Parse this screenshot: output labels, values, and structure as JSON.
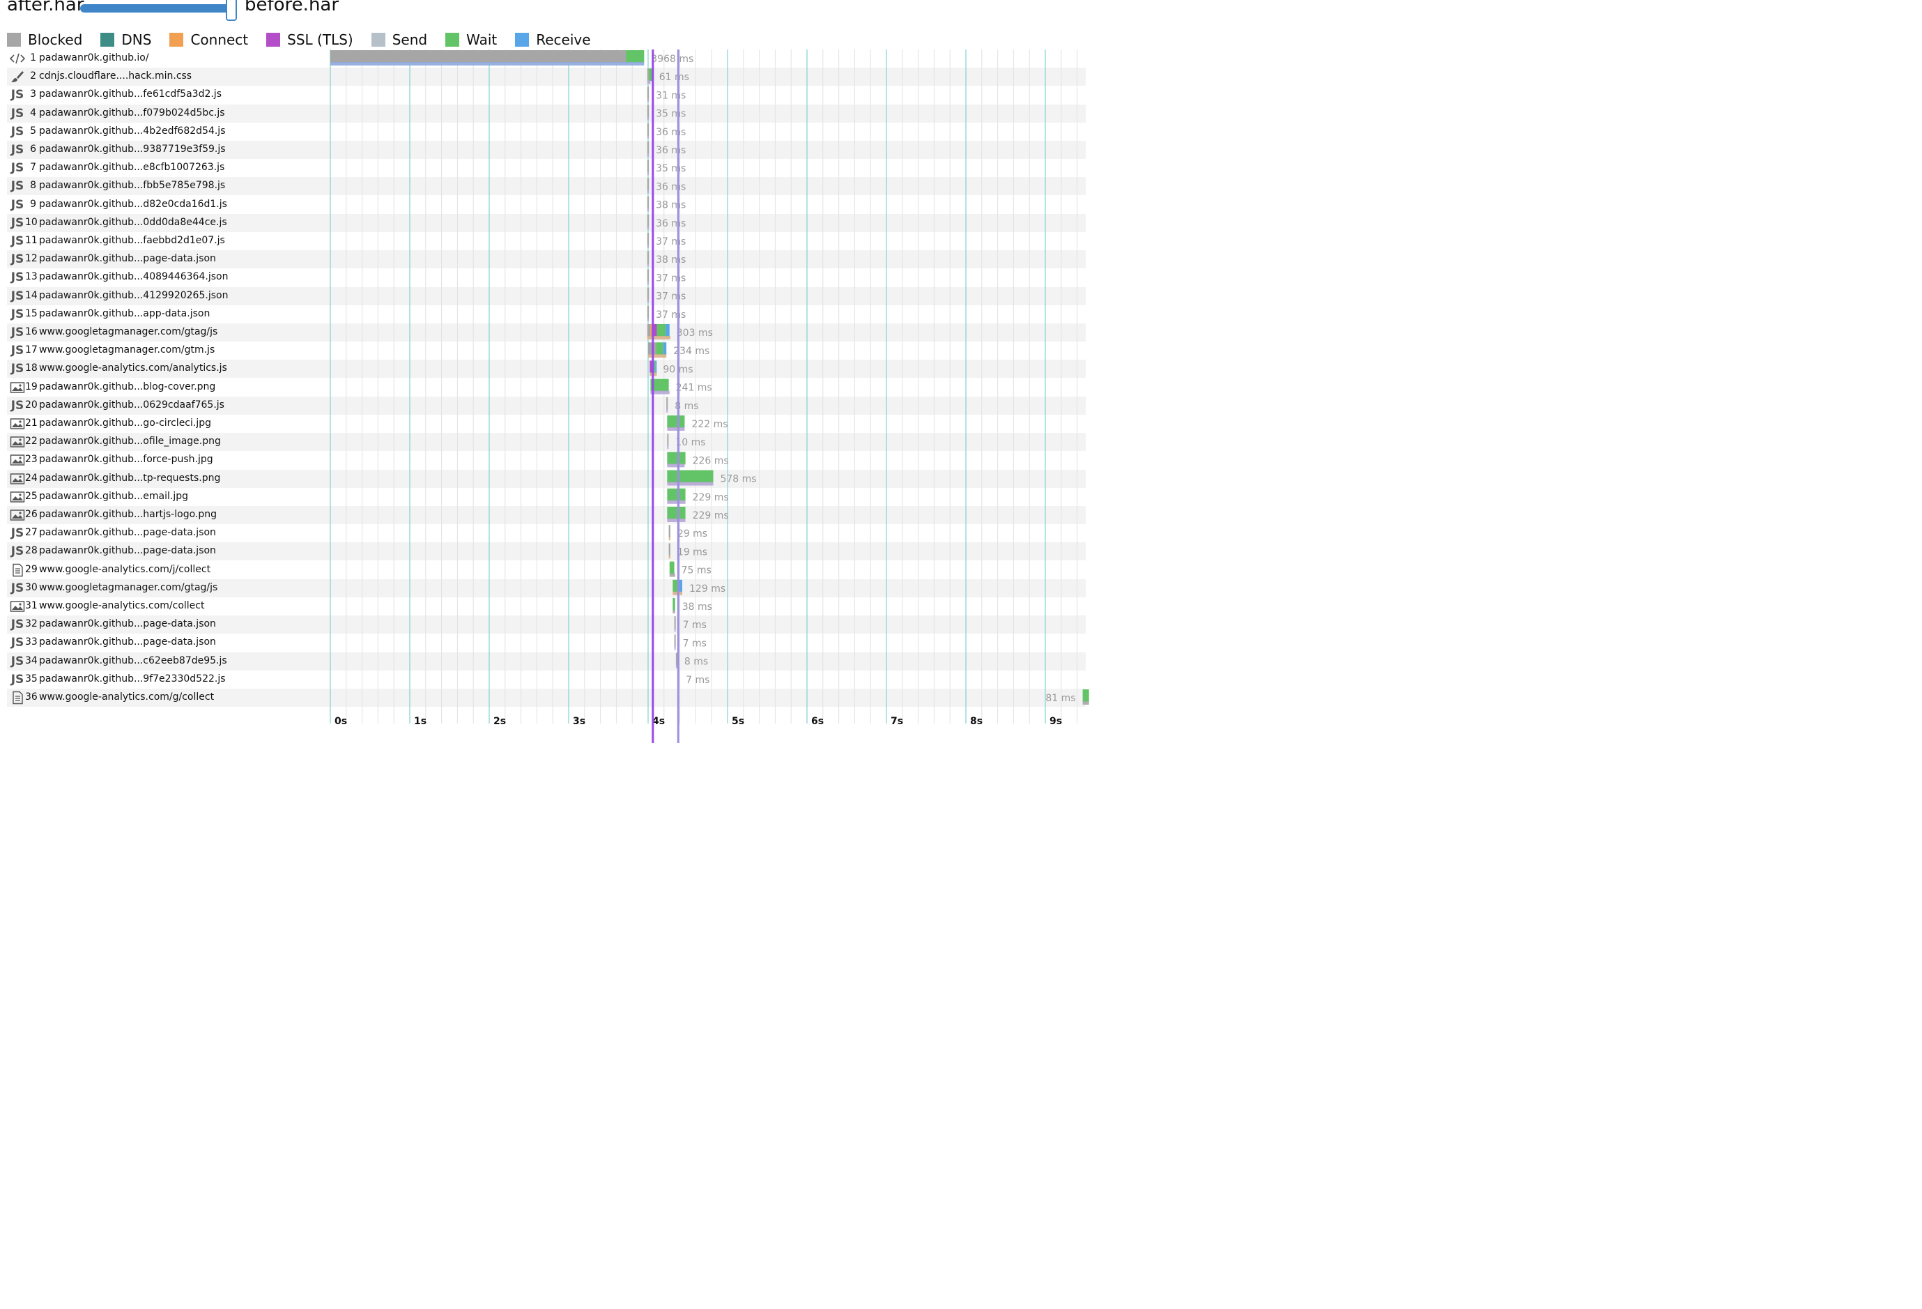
{
  "header": {
    "after_label": "after.har",
    "before_label": "before.har",
    "comparison_slider_percent": 96
  },
  "legend": [
    {
      "key": "blocked",
      "label": "Blocked",
      "color": "#a6a6a6"
    },
    {
      "key": "dns",
      "label": "DNS",
      "color": "#3d8d86"
    },
    {
      "key": "connect",
      "label": "Connect",
      "color": "#f0a050"
    },
    {
      "key": "ssl",
      "label": "SSL (TLS)",
      "color": "#b44ec8"
    },
    {
      "key": "send",
      "label": "Send",
      "color": "#b6c0c8"
    },
    {
      "key": "wait",
      "label": "Wait",
      "color": "#62c466"
    },
    {
      "key": "receive",
      "label": "Receive",
      "color": "#58a6e8"
    }
  ],
  "timeline": {
    "axis_labels": [
      "0s",
      "1s",
      "2s",
      "3s",
      "4s",
      "5s",
      "6s",
      "7s",
      "8s",
      "9s"
    ],
    "max_seconds": 9.55,
    "dom_content_loaded_s": 4.06,
    "onload_s": 4.38
  },
  "requests": [
    {
      "num": "1",
      "url": "padawanr0k.github.io/",
      "icon": "html",
      "start": 0.0,
      "phases": {
        "blocked": 3.72,
        "wait": 0.23
      },
      "duration": "3968 ms",
      "compare_color": "#8ea8de",
      "compare_dur": 3.95
    },
    {
      "num": "2",
      "url": "cdnjs.cloudflare....hack.min.css",
      "icon": "css",
      "start": 3.99,
      "phases": {
        "blocked": 0.02,
        "wait": 0.04
      },
      "duration": "61 ms",
      "compare_color": "#b6a6d6",
      "compare_dur": 0.04
    },
    {
      "num": "3",
      "url": "padawanr0k.github...fe61cdf5a3d2.js",
      "icon": "js",
      "start": 3.99,
      "phases": {
        "blocked": 0.02
      },
      "duration": "31 ms",
      "compare_color": "#b6a6d6",
      "compare_dur": 0.02
    },
    {
      "num": "4",
      "url": "padawanr0k.github...f079b024d5bc.js",
      "icon": "js",
      "start": 3.99,
      "phases": {
        "blocked": 0.02
      },
      "duration": "35 ms",
      "compare_color": "#b6a6d6",
      "compare_dur": 0.02
    },
    {
      "num": "5",
      "url": "padawanr0k.github...4b2edf682d54.js",
      "icon": "js",
      "start": 3.99,
      "phases": {
        "blocked": 0.02
      },
      "duration": "36 ms",
      "compare_color": "#b6a6d6",
      "compare_dur": 0.02
    },
    {
      "num": "6",
      "url": "padawanr0k.github...9387719e3f59.js",
      "icon": "js",
      "start": 3.99,
      "phases": {
        "blocked": 0.02
      },
      "duration": "36 ms",
      "compare_color": "#b6a6d6",
      "compare_dur": 0.02
    },
    {
      "num": "7",
      "url": "padawanr0k.github...e8cfb1007263.js",
      "icon": "js",
      "start": 3.99,
      "phases": {
        "blocked": 0.02
      },
      "duration": "35 ms",
      "compare_color": "#b6a6d6",
      "compare_dur": 0.02
    },
    {
      "num": "8",
      "url": "padawanr0k.github...fbb5e785e798.js",
      "icon": "js",
      "start": 3.99,
      "phases": {
        "blocked": 0.02
      },
      "duration": "36 ms",
      "compare_color": "#b6a6d6",
      "compare_dur": 0.02
    },
    {
      "num": "9",
      "url": "padawanr0k.github...d82e0cda16d1.js",
      "icon": "js",
      "start": 3.99,
      "phases": {
        "blocked": 0.02
      },
      "duration": "38 ms",
      "compare_color": "#b6a6d6",
      "compare_dur": 0.02
    },
    {
      "num": "10",
      "url": "padawanr0k.github...0dd0da8e44ce.js",
      "icon": "js",
      "start": 3.99,
      "phases": {
        "blocked": 0.02
      },
      "duration": "36 ms",
      "compare_color": "#b6a6d6",
      "compare_dur": 0.02
    },
    {
      "num": "11",
      "url": "padawanr0k.github...faebbd2d1e07.js",
      "icon": "js",
      "start": 3.99,
      "phases": {
        "blocked": 0.02
      },
      "duration": "37 ms",
      "compare_color": "#b6a6d6",
      "compare_dur": 0.02
    },
    {
      "num": "12",
      "url": "padawanr0k.github...page-data.json",
      "icon": "js",
      "start": 3.99,
      "phases": {
        "blocked": 0.02
      },
      "duration": "38 ms",
      "compare_color": "#b6a6d6",
      "compare_dur": 0.02
    },
    {
      "num": "13",
      "url": "padawanr0k.github...4089446364.json",
      "icon": "js",
      "start": 3.99,
      "phases": {
        "blocked": 0.02
      },
      "duration": "37 ms",
      "compare_color": "#b6a6d6",
      "compare_dur": 0.02
    },
    {
      "num": "14",
      "url": "padawanr0k.github...4129920265.json",
      "icon": "js",
      "start": 3.99,
      "phases": {
        "blocked": 0.02
      },
      "duration": "37 ms",
      "compare_color": "#b6a6d6",
      "compare_dur": 0.02
    },
    {
      "num": "15",
      "url": "padawanr0k.github...app-data.json",
      "icon": "js",
      "start": 3.99,
      "phases": {
        "blocked": 0.02
      },
      "duration": "37 ms",
      "compare_color": "#b6a6d6",
      "compare_dur": 0.02
    },
    {
      "num": "16",
      "url": "www.googletagmanager.com/gtag/js",
      "icon": "js",
      "start": 3.99,
      "phases": {
        "blocked": 0.04,
        "ssl": 0.06,
        "connect": 0.02,
        "wait": 0.11,
        "receive": 0.05
      },
      "duration": "303 ms",
      "compare_color": "#d8b08a",
      "compare_dur": 0.29
    },
    {
      "num": "17",
      "url": "www.googletagmanager.com/gtm.js",
      "icon": "js",
      "start": 4.0,
      "phases": {
        "blocked": 0.1,
        "wait": 0.09,
        "receive": 0.04
      },
      "duration": "234 ms",
      "compare_color": "#d8b08a",
      "compare_dur": 0.23
    },
    {
      "num": "18",
      "url": "www.google-analytics.com/analytics.js",
      "icon": "js",
      "start": 4.02,
      "phases": {
        "ssl": 0.04,
        "wait": 0.03,
        "receive": 0.01
      },
      "duration": "90 ms",
      "compare_color": "#d8b08a",
      "compare_dur": 0.09
    },
    {
      "num": "19",
      "url": "padawanr0k.github...blog-cover.png",
      "icon": "img",
      "start": 4.03,
      "phases": {
        "wait": 0.23
      },
      "duration": "241 ms",
      "compare_color": "#b6a6d6",
      "compare_dur": 0.24
    },
    {
      "num": "20",
      "url": "padawanr0k.github...0629cdaaf765.js",
      "icon": "js",
      "start": 4.23,
      "phases": {
        "blocked": 0.01
      },
      "duration": "8 ms",
      "compare_color": "#b6a6d6",
      "compare_dur": 0.01
    },
    {
      "num": "21",
      "url": "padawanr0k.github...go-circleci.jpg",
      "icon": "img",
      "start": 4.24,
      "phases": {
        "wait": 0.22
      },
      "duration": "222 ms",
      "compare_color": "#b6a6d6",
      "compare_dur": 0.22
    },
    {
      "num": "22",
      "url": "padawanr0k.github...ofile_image.png",
      "icon": "img",
      "start": 4.24,
      "phases": {
        "blocked": 0.01
      },
      "duration": "10 ms",
      "compare_color": "#b6a6d6",
      "compare_dur": 0.01
    },
    {
      "num": "23",
      "url": "padawanr0k.github...force-push.jpg",
      "icon": "img",
      "start": 4.24,
      "phases": {
        "wait": 0.23
      },
      "duration": "226 ms",
      "compare_color": "#b6a6d6",
      "compare_dur": 0.22
    },
    {
      "num": "24",
      "url": "padawanr0k.github...tp-requests.png",
      "icon": "img",
      "start": 4.24,
      "phases": {
        "wait": 0.58
      },
      "duration": "578 ms",
      "compare_color": "#b6a6d6",
      "compare_dur": 0.58
    },
    {
      "num": "25",
      "url": "padawanr0k.github...email.jpg",
      "icon": "img",
      "start": 4.24,
      "phases": {
        "wait": 0.23
      },
      "duration": "229 ms",
      "compare_color": "#b6a6d6",
      "compare_dur": 0.23
    },
    {
      "num": "26",
      "url": "padawanr0k.github...hartjs-logo.png",
      "icon": "img",
      "start": 4.24,
      "phases": {
        "wait": 0.23
      },
      "duration": "229 ms",
      "compare_color": "#b6a6d6",
      "compare_dur": 0.23
    },
    {
      "num": "27",
      "url": "padawanr0k.github...page-data.json",
      "icon": "js",
      "start": 4.26,
      "phases": {
        "blocked": 0.02
      },
      "duration": "29 ms",
      "compare_color": "#d8b08a",
      "compare_dur": 0.02
    },
    {
      "num": "28",
      "url": "padawanr0k.github...page-data.json",
      "icon": "js",
      "start": 4.26,
      "phases": {
        "blocked": 0.02
      },
      "duration": "19 ms",
      "compare_color": "#d8b08a",
      "compare_dur": 0.02
    },
    {
      "num": "29",
      "url": "www.google-analytics.com/j/collect",
      "icon": "doc",
      "start": 4.27,
      "phases": {
        "wait": 0.06
      },
      "duration": "75 ms",
      "compare_color": "#a6a6a6",
      "compare_dur": 0.07
    },
    {
      "num": "30",
      "url": "www.googletagmanager.com/gtag/js",
      "icon": "js",
      "start": 4.31,
      "phases": {
        "wait": 0.08,
        "receive": 0.04
      },
      "duration": "129 ms",
      "compare_color": "#d8b08a",
      "compare_dur": 0.12
    },
    {
      "num": "31",
      "url": "www.google-analytics.com/collect",
      "icon": "img",
      "start": 4.31,
      "phases": {
        "wait": 0.03
      },
      "duration": "38 ms",
      "compare_color": "#a6a6a6",
      "compare_dur": 0.03
    },
    {
      "num": "32",
      "url": "padawanr0k.github...page-data.json",
      "icon": "js",
      "start": 4.33,
      "phases": {
        "blocked": 0.01
      },
      "duration": "7 ms",
      "compare_color": "#b6a6d6",
      "compare_dur": 0.01
    },
    {
      "num": "33",
      "url": "padawanr0k.github...page-data.json",
      "icon": "js",
      "start": 4.33,
      "phases": {
        "blocked": 0.01
      },
      "duration": "7 ms",
      "compare_color": "#b6a6d6",
      "compare_dur": 0.01
    },
    {
      "num": "34",
      "url": "padawanr0k.github...c62eeb87de95.js",
      "icon": "js",
      "start": 4.35,
      "phases": {
        "blocked": 0.01
      },
      "duration": "8 ms",
      "compare_color": "#b6a6d6",
      "compare_dur": 0.01
    },
    {
      "num": "35",
      "url": "padawanr0k.github...9f7e2330d522.js",
      "icon": "js",
      "start": 4.37,
      "phases": {
        "blocked": 0.01
      },
      "duration": "7 ms",
      "compare_color": "#b6a6d6",
      "compare_dur": 0.01
    },
    {
      "num": "36",
      "url": "www.google-analytics.com/g/collect",
      "icon": "doc",
      "start": 9.47,
      "phases": {
        "wait": 0.08
      },
      "duration": "81 ms",
      "compare_color": "#a6a6a6",
      "compare_dur": 0.08,
      "label_left": true
    }
  ]
}
